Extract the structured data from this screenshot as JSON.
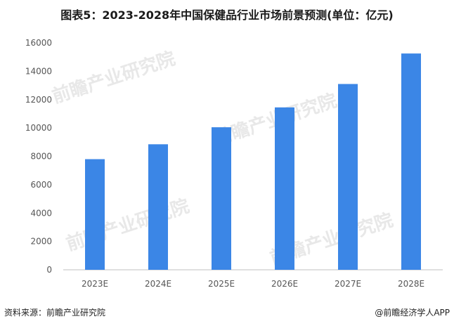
{
  "title": "图表5：2023-2028年中国保健品行业市场前景预测(单位：亿元)",
  "watermark": "前瞻产业研究院",
  "footer": {
    "source": "资料来源：前瞻产业研究院",
    "brand": "@前瞻经济学人APP"
  },
  "colors": {
    "bar": "#3b86e6",
    "axis": "#bfbfbf",
    "tick_text": "#555555"
  },
  "chart_data": {
    "type": "bar",
    "title": "图表5：2023-2028年中国保健品行业市场前景预测(单位：亿元)",
    "xlabel": "",
    "ylabel": "",
    "categories": [
      "2023E",
      "2024E",
      "2025E",
      "2026E",
      "2027E",
      "2028E"
    ],
    "values": [
      7800,
      8850,
      10050,
      11450,
      13100,
      15250
    ],
    "ylim": [
      0,
      16000
    ],
    "yticks": [
      0,
      2000,
      4000,
      6000,
      8000,
      10000,
      12000,
      14000,
      16000
    ],
    "grid": false,
    "legend": "none"
  }
}
